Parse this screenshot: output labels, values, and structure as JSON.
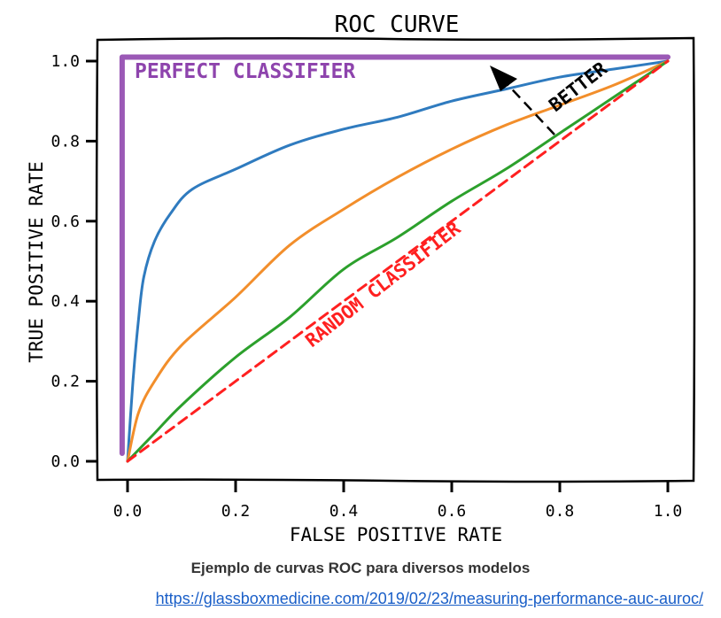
{
  "chart_data": {
    "type": "line",
    "title": "ROC CURVE",
    "xlabel": "FALSE POSITIVE RATE",
    "ylabel": "TRUE POSITIVE RATE",
    "xlim": [
      0,
      1
    ],
    "ylim": [
      0,
      1
    ],
    "xticks": [
      "0.0",
      "0.2",
      "0.4",
      "0.6",
      "0.8",
      "1.0"
    ],
    "yticks": [
      "0.0",
      "0.2",
      "0.4",
      "0.6",
      "0.8",
      "1.0"
    ],
    "grid": false,
    "annotations": {
      "perfect": "PERFECT CLASSIFIER",
      "random": "RANDOM CLASSIFIER",
      "better": "BETTER"
    },
    "series": [
      {
        "color": "#9b59b6",
        "style": "perfect",
        "x": [
          -0.01,
          -0.01,
          1.0
        ],
        "y": [
          0.02,
          1.01,
          1.01
        ]
      },
      {
        "color": "#2f7bbf",
        "x": [
          0.0,
          0.01,
          0.02,
          0.03,
          0.05,
          0.08,
          0.12,
          0.2,
          0.3,
          0.4,
          0.5,
          0.6,
          0.7,
          0.8,
          0.9,
          1.0
        ],
        "y": [
          0.0,
          0.2,
          0.35,
          0.46,
          0.55,
          0.62,
          0.68,
          0.73,
          0.79,
          0.83,
          0.86,
          0.9,
          0.93,
          0.96,
          0.98,
          1.0
        ]
      },
      {
        "color": "#f28e2b",
        "x": [
          0.0,
          0.02,
          0.05,
          0.1,
          0.2,
          0.3,
          0.4,
          0.5,
          0.6,
          0.7,
          0.8,
          0.9,
          1.0
        ],
        "y": [
          0.0,
          0.12,
          0.2,
          0.29,
          0.41,
          0.54,
          0.63,
          0.71,
          0.78,
          0.84,
          0.89,
          0.94,
          1.0
        ]
      },
      {
        "color": "#2ca02c",
        "x": [
          0.0,
          0.05,
          0.1,
          0.2,
          0.3,
          0.4,
          0.5,
          0.6,
          0.7,
          0.8,
          0.9,
          1.0
        ],
        "y": [
          0.0,
          0.07,
          0.14,
          0.26,
          0.36,
          0.48,
          0.56,
          0.65,
          0.73,
          0.82,
          0.91,
          1.0
        ]
      },
      {
        "color": "#ff2020",
        "style": "dashed",
        "x": [
          0.0,
          1.0
        ],
        "y": [
          0.0,
          1.0
        ]
      }
    ]
  },
  "caption": "Ejemplo de curvas ROC para diversos modelos",
  "source_url": "https://glassboxmedicine.com/2019/02/23/measuring-performance-auc-auroc/"
}
